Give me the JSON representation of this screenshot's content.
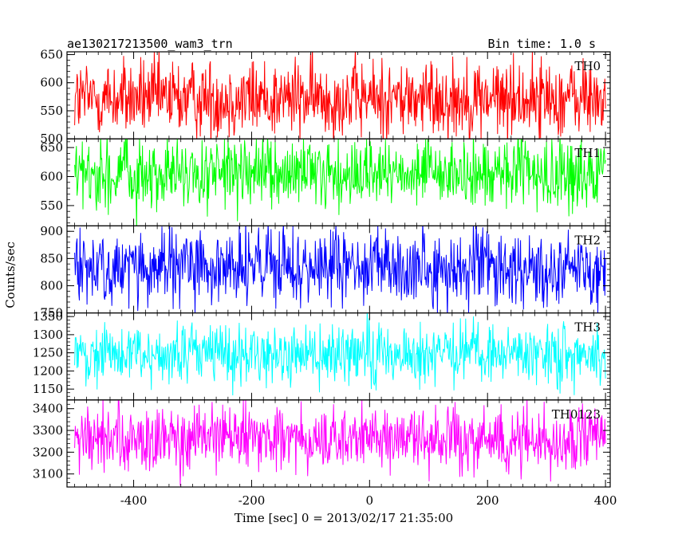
{
  "chart_data": {
    "type": "line",
    "title": "ae130217213500_wam3_trn",
    "subtitle": "Bin time: 1.0 s",
    "xlabel": "Time [sec] 0 = 2013/02/17 21:35:00",
    "ylabel": "Counts/sec",
    "xlim": [
      -513,
      408
    ],
    "x_ticks": [
      -400,
      -200,
      0,
      200,
      400
    ],
    "x_data_range": [
      -500,
      400
    ],
    "bin_time": 1.0,
    "panels": [
      {
        "name": "TH0",
        "color": "#ff0000",
        "ylim": [
          500,
          655
        ],
        "y_ticks": [
          500,
          550,
          600,
          650
        ],
        "mean": 572,
        "amplitude": 38
      },
      {
        "name": "TH1",
        "color": "#00ff00",
        "ylim": [
          515,
          665
        ],
        "y_ticks": [
          550,
          600,
          650
        ],
        "mean": 603,
        "amplitude": 32
      },
      {
        "name": "TH2",
        "color": "#0000ff",
        "ylim": [
          750,
          910
        ],
        "y_ticks": [
          750,
          800,
          850,
          900
        ],
        "mean": 833,
        "amplitude": 38
      },
      {
        "name": "TH3",
        "color": "#00ffff",
        "ylim": [
          1120,
          1360
        ],
        "y_ticks": [
          1150,
          1200,
          1250,
          1300,
          1350
        ],
        "mean": 1246,
        "amplitude": 45
      },
      {
        "name": "TH0123",
        "color": "#ff00ff",
        "ylim": [
          3040,
          3440
        ],
        "y_ticks": [
          3100,
          3200,
          3300,
          3400
        ],
        "mean": 3258,
        "amplitude": 80
      }
    ]
  }
}
